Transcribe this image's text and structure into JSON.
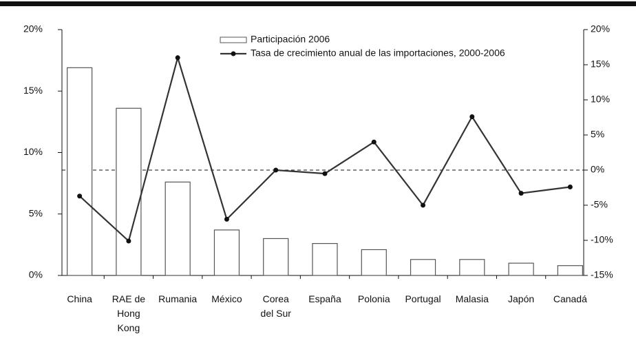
{
  "chart_data": {
    "type": "bar_line",
    "categories": [
      "China",
      "RAE de Hong Kong",
      "Rumania",
      "México",
      "Corea del Sur",
      "España",
      "Polonia",
      "Portugal",
      "Malasia",
      "Japón",
      "Canadá"
    ],
    "series": [
      {
        "name": "Participación 2006",
        "type": "bar",
        "color": "#ffffff",
        "values": [
          16.9,
          13.6,
          7.6,
          3.7,
          3.0,
          2.6,
          2.1,
          1.3,
          1.3,
          1.0,
          0.8
        ]
      },
      {
        "name": "Tasa de crecimiento anual de las importaciones, 2000-2006",
        "type": "line",
        "axis": "y2",
        "color": "#333333",
        "values": [
          -3.7,
          -10.1,
          16.0,
          -7.0,
          0.0,
          -0.5,
          4.0,
          -5.0,
          7.6,
          -3.3,
          -2.4
        ]
      }
    ],
    "ylim": [
      0,
      20
    ],
    "yticks": [
      {
        "value": 0,
        "label": "0%"
      },
      {
        "value": 5,
        "label": "5%"
      },
      {
        "value": 10,
        "label": "10%"
      },
      {
        "value": 15,
        "label": "15%"
      },
      {
        "value": 20,
        "label": "20%"
      }
    ],
    "y2lim": [
      -15,
      20
    ],
    "y2ticks": [
      {
        "value": -15,
        "label": "-15%"
      },
      {
        "value": -10,
        "label": "-10%"
      },
      {
        "value": -5,
        "label": "-5%"
      },
      {
        "value": 0,
        "label": "0%"
      },
      {
        "value": 5,
        "label": "5%"
      },
      {
        "value": 10,
        "label": "10%"
      },
      {
        "value": 15,
        "label": "15%"
      },
      {
        "value": 20,
        "label": "20%"
      }
    ],
    "legend": "top"
  }
}
